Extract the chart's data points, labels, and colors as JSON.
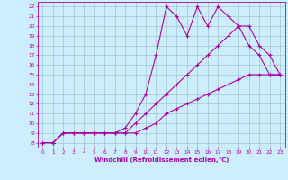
{
  "xlabel": "Windchill (Refroidissement éolien,°C)",
  "xlim": [
    -0.5,
    23.5
  ],
  "ylim": [
    7.5,
    22.5
  ],
  "xticks": [
    0,
    1,
    2,
    3,
    4,
    5,
    6,
    7,
    8,
    9,
    10,
    11,
    12,
    13,
    14,
    15,
    16,
    17,
    18,
    19,
    20,
    21,
    22,
    23
  ],
  "yticks": [
    8,
    9,
    10,
    11,
    12,
    13,
    14,
    15,
    16,
    17,
    18,
    19,
    20,
    21,
    22
  ],
  "bg_color": "#cceeff",
  "line_color": "#aa00aa",
  "grid_color": "#99bbcc",
  "line1_x": [
    0,
    1,
    2,
    3,
    4,
    5,
    6,
    7,
    8,
    9,
    10,
    11,
    12,
    13,
    14,
    15,
    16,
    17,
    18,
    19,
    20,
    21,
    22,
    23
  ],
  "line1_y": [
    8,
    8,
    9,
    9,
    9,
    9,
    9,
    9,
    9.5,
    11,
    13,
    17,
    22,
    21,
    19,
    22,
    20,
    22,
    21,
    20,
    18,
    17,
    15,
    15
  ],
  "line2_x": [
    0,
    1,
    2,
    3,
    4,
    5,
    6,
    7,
    8,
    9,
    10,
    11,
    12,
    13,
    14,
    15,
    16,
    17,
    18,
    19,
    20,
    21,
    22,
    23
  ],
  "line2_y": [
    8,
    8,
    9,
    9,
    9,
    9,
    9,
    9,
    9,
    10,
    11,
    12,
    13,
    14,
    15,
    16,
    17,
    18,
    19,
    20,
    20,
    18,
    17,
    15
  ],
  "line3_x": [
    0,
    1,
    2,
    3,
    4,
    5,
    6,
    7,
    8,
    9,
    10,
    11,
    12,
    13,
    14,
    15,
    16,
    17,
    18,
    19,
    20,
    21,
    22,
    23
  ],
  "line3_y": [
    8,
    8,
    9,
    9,
    9,
    9,
    9,
    9,
    9,
    9,
    9.5,
    10,
    11,
    11.5,
    12,
    12.5,
    13,
    13.5,
    14,
    14.5,
    15,
    15,
    15,
    15
  ]
}
